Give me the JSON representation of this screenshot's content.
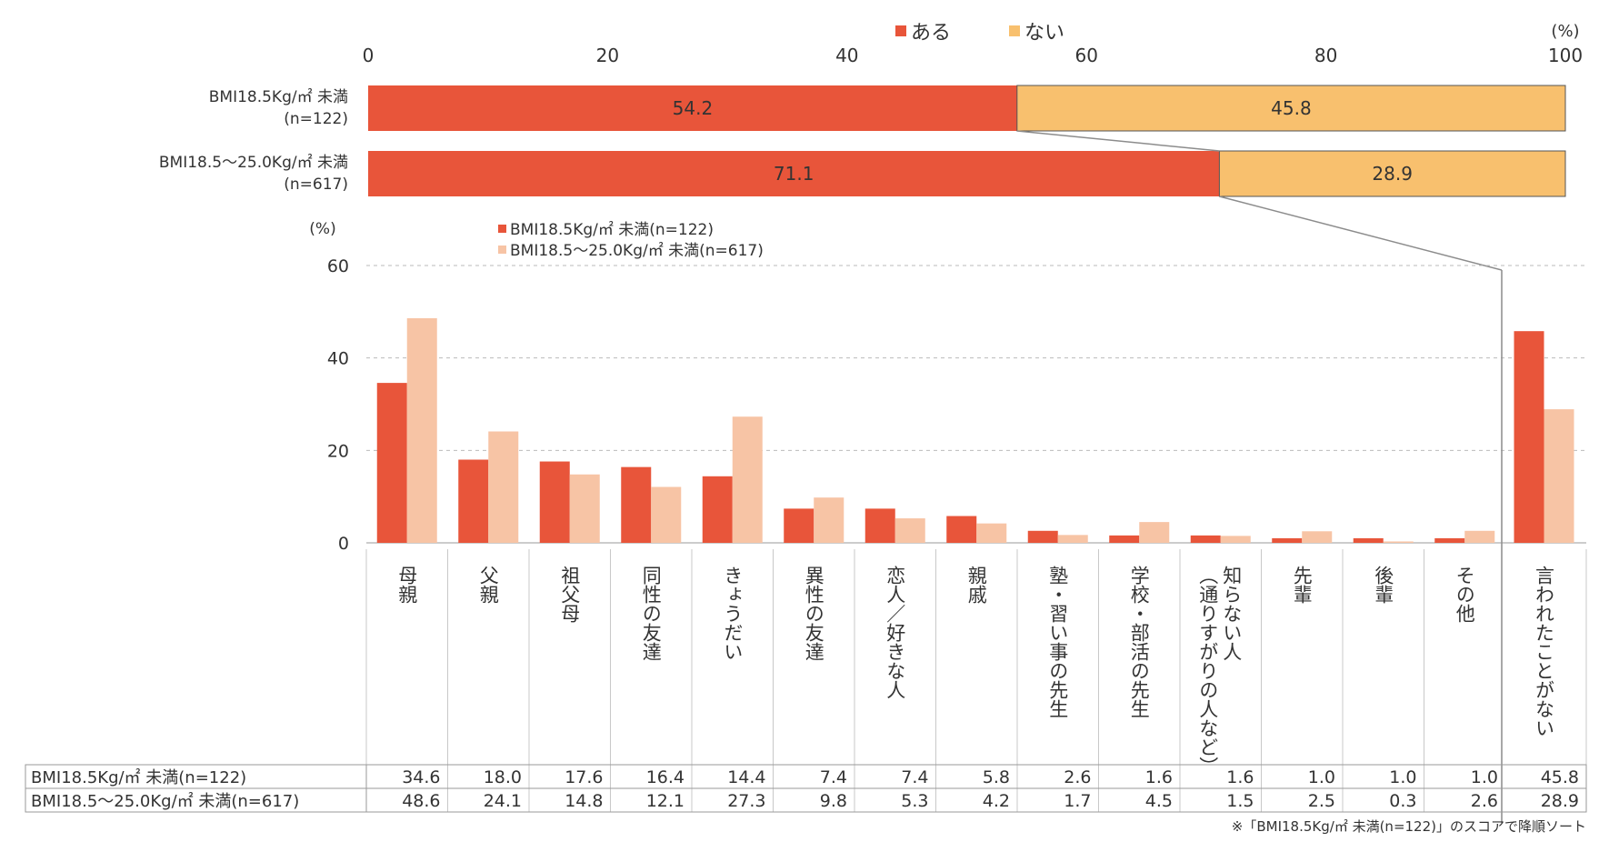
{
  "colors": {
    "aru": "#e8553a",
    "nai": "#f8c06e",
    "s1": "#e8553a",
    "s2": "#f7c4a5",
    "grid": "#bbbbbb",
    "guide": "#8c8c8c"
  },
  "chart_data": [
    {
      "type": "bar",
      "orientation": "horizontal-stacked",
      "unit": "(%)",
      "xlim": [
        0,
        100
      ],
      "ticks": [
        "0",
        "20",
        "40",
        "60",
        "80",
        "100"
      ],
      "legend": [
        "ある",
        "ない"
      ],
      "rows": [
        {
          "label1": "BMI18.5Kg/㎡ 未満",
          "label2": "(n=122)",
          "aru": 54.2,
          "nai": 45.8,
          "aru_text": "54.2",
          "nai_text": "45.8"
        },
        {
          "label1": "BMI18.5～25.0Kg/㎡ 未満",
          "label2": "(n=617)",
          "aru": 71.1,
          "nai": 28.9,
          "aru_text": "71.1",
          "nai_text": "28.9"
        }
      ]
    },
    {
      "type": "bar",
      "unit": "(%)",
      "ylim": [
        0,
        60
      ],
      "yticks": [
        "0",
        "20",
        "40",
        "60"
      ],
      "categories": [
        "母親",
        "父親",
        "祖父母",
        "同性の友達",
        "きょうだい",
        "異性の友達",
        "恋人／好きな人",
        "親戚",
        "塾・習い事の先生",
        "学校・部活の先生",
        "知らない人\n（通りすがりの人など）",
        "先輩",
        "後輩",
        "その他",
        "言われたことがない"
      ],
      "series": [
        {
          "name": "BMI18.5Kg/㎡ 未満(n=122)",
          "values": [
            34.6,
            18.0,
            17.6,
            16.4,
            14.4,
            7.4,
            7.4,
            5.8,
            2.6,
            1.6,
            1.6,
            1.0,
            1.0,
            1.0,
            45.8
          ]
        },
        {
          "name": "BMI18.5～25.0Kg/㎡ 未満(n=617)",
          "values": [
            48.6,
            24.1,
            14.8,
            12.1,
            27.3,
            9.8,
            5.3,
            4.2,
            1.7,
            4.5,
            1.5,
            2.5,
            0.3,
            2.6,
            28.9
          ]
        }
      ],
      "table": {
        "row_labels": [
          "BMI18.5Kg/㎡ 未満(n=122)",
          "BMI18.5～25.0Kg/㎡ 未満(n=617)"
        ],
        "rows": [
          [
            "34.6",
            "18.0",
            "17.6",
            "16.4",
            "14.4",
            "7.4",
            "7.4",
            "5.8",
            "2.6",
            "1.6",
            "1.6",
            "1.0",
            "1.0",
            "1.0",
            "45.8"
          ],
          [
            "48.6",
            "24.1",
            "14.8",
            "12.1",
            "27.3",
            "9.8",
            "5.3",
            "4.2",
            "1.7",
            "4.5",
            "1.5",
            "2.5",
            "0.3",
            "2.6",
            "28.9"
          ]
        ]
      },
      "footnote": "※「BMI18.5Kg/㎡ 未満(n=122)」のスコアで降順ソート"
    }
  ]
}
